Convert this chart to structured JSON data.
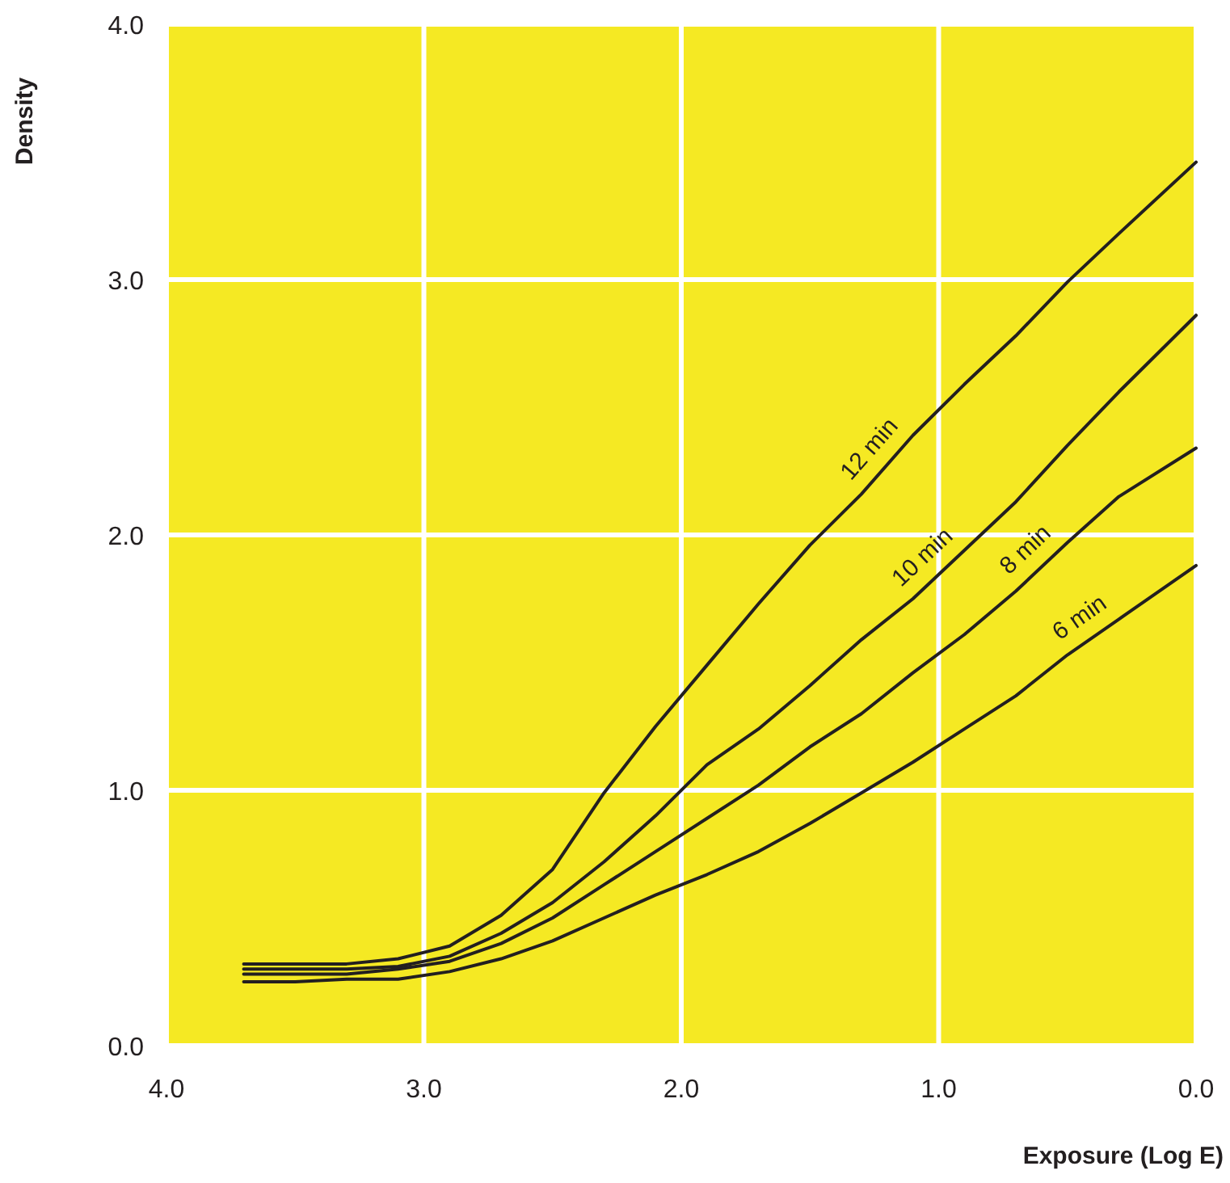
{
  "chart_data": {
    "type": "line",
    "xlabel": "Exposure (Log E)",
    "ylabel": "Density",
    "x": [
      3.7,
      3.5,
      3.3,
      3.1,
      2.9,
      2.7,
      2.5,
      2.3,
      2.1,
      1.9,
      1.7,
      1.5,
      1.3,
      1.1,
      0.9,
      0.7,
      0.5,
      0.3,
      0.0
    ],
    "series": [
      {
        "name": "12 min",
        "color": "#231f20",
        "values": [
          0.32,
          0.32,
          0.32,
          0.34,
          0.39,
          0.51,
          0.69,
          0.99,
          1.25,
          1.49,
          1.73,
          1.96,
          2.16,
          2.39,
          2.59,
          2.78,
          2.99,
          3.18,
          3.46
        ]
      },
      {
        "name": "10 min",
        "color": "#231f20",
        "values": [
          0.3,
          0.3,
          0.3,
          0.31,
          0.35,
          0.44,
          0.56,
          0.72,
          0.9,
          1.1,
          1.24,
          1.41,
          1.59,
          1.75,
          1.94,
          2.13,
          2.35,
          2.56,
          2.86
        ]
      },
      {
        "name": "8 min",
        "color": "#231f20",
        "values": [
          0.28,
          0.28,
          0.28,
          0.3,
          0.33,
          0.4,
          0.5,
          0.63,
          0.76,
          0.89,
          1.02,
          1.17,
          1.3,
          1.46,
          1.61,
          1.78,
          1.97,
          2.15,
          2.34
        ]
      },
      {
        "name": "6 min",
        "color": "#231f20",
        "values": [
          0.25,
          0.25,
          0.26,
          0.26,
          0.29,
          0.34,
          0.41,
          0.5,
          0.59,
          0.67,
          0.76,
          0.87,
          0.99,
          1.11,
          1.24,
          1.37,
          1.53,
          1.67,
          1.88
        ]
      }
    ],
    "xlim": [
      4.0,
      0.0
    ],
    "xticks": [
      {
        "value": 4,
        "label": "4.0"
      },
      {
        "value": 3,
        "label": "3.0"
      },
      {
        "value": 2,
        "label": "2.0"
      },
      {
        "value": 1,
        "label": "1.0"
      },
      {
        "value": 0,
        "label": "0.0"
      }
    ],
    "ylim": [
      0.0,
      4.0
    ],
    "yticks": [
      {
        "value": 0,
        "label": "0.0"
      },
      {
        "value": 1,
        "label": "1.0"
      },
      {
        "value": 2,
        "label": "2.0"
      },
      {
        "value": 3,
        "label": "3.0"
      },
      {
        "value": 4,
        "label": "4.0"
      }
    ],
    "grid": true,
    "marker": "none",
    "line_style": "solid"
  }
}
